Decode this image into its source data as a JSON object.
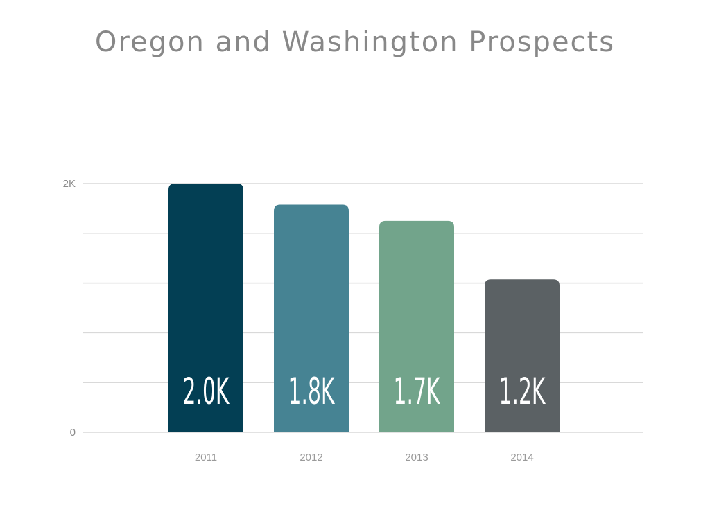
{
  "title": "Oregon and Washington Prospects",
  "chart_data": {
    "type": "bar",
    "title": "Oregon and Washington Prospects",
    "xlabel": "",
    "ylabel": "",
    "categories": [
      "2011",
      "2012",
      "2013",
      "2014"
    ],
    "values": [
      2000,
      1830,
      1700,
      1230
    ],
    "data_labels": [
      "2.0K",
      "1.8K",
      "1.7K",
      "1.2K"
    ],
    "colors": [
      "#033f54",
      "#468393",
      "#72a48b",
      "#5b6164"
    ],
    "ylim": [
      0,
      2000
    ],
    "y_ticks": [
      {
        "value": 0,
        "label": "0"
      },
      {
        "value": 2000,
        "label": "2K"
      }
    ],
    "gridlines": [
      0,
      400,
      800,
      1200,
      1600,
      2000
    ],
    "grid": true,
    "legend": "none"
  }
}
